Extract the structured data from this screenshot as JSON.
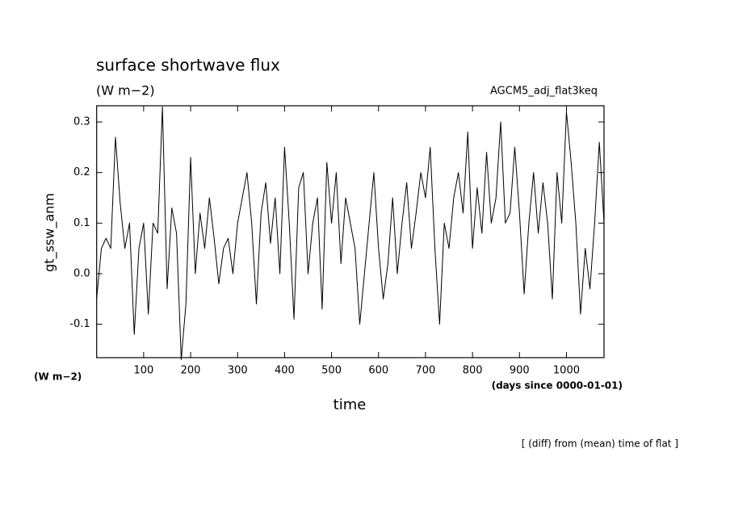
{
  "chart_data": {
    "type": "line",
    "title": "surface shortwave flux",
    "subtitle": "(W m−2)",
    "annotation": "AGCM5_adj_flat3keq",
    "ylabel": "gt_ssw_anm",
    "y_units": "(W m−2)",
    "x_units": "(days since 0000-01-01)",
    "xlabel": "time",
    "footnote": "[ (diff) from (mean) time of flat ]",
    "xlim": [
      0,
      1080
    ],
    "xticks": [
      100,
      200,
      300,
      400,
      500,
      600,
      700,
      800,
      900,
      1000
    ],
    "ylim": [
      -0.166,
      0.332
    ],
    "yticks": [
      {
        "value": -0.1,
        "label": "-0.1"
      },
      {
        "value": 0,
        "label": "0.0"
      },
      0.1,
      0.2,
      0.3
    ],
    "grid": false,
    "series": [
      {
        "name": "gt_ssw_anm",
        "color": "#000000",
        "x": [
          0,
          10,
          20,
          30,
          40,
          50,
          60,
          70,
          80,
          90,
          100,
          110,
          120,
          130,
          140,
          150,
          160,
          170,
          180,
          190,
          200,
          210,
          220,
          230,
          240,
          250,
          260,
          270,
          280,
          290,
          300,
          310,
          320,
          330,
          340,
          350,
          360,
          370,
          380,
          390,
          400,
          410,
          420,
          430,
          440,
          450,
          460,
          470,
          480,
          490,
          500,
          510,
          520,
          530,
          540,
          550,
          560,
          570,
          580,
          590,
          600,
          610,
          620,
          630,
          640,
          650,
          660,
          670,
          680,
          690,
          700,
          710,
          720,
          730,
          740,
          750,
          760,
          770,
          780,
          790,
          800,
          810,
          820,
          830,
          840,
          850,
          860,
          870,
          880,
          890,
          900,
          910,
          920,
          930,
          940,
          950,
          960,
          970,
          980,
          990,
          1000,
          1010,
          1020,
          1030,
          1040,
          1050,
          1060,
          1070,
          1080
        ],
        "values": [
          -0.05,
          0.05,
          0.07,
          0.05,
          0.27,
          0.14,
          0.05,
          0.1,
          -0.12,
          0.05,
          0.1,
          -0.08,
          0.1,
          0.08,
          0.33,
          -0.03,
          0.13,
          0.08,
          -0.17,
          -0.06,
          0.23,
          0.0,
          0.12,
          0.05,
          0.15,
          0.07,
          -0.02,
          0.05,
          0.07,
          0.0,
          0.1,
          0.15,
          0.2,
          0.1,
          -0.06,
          0.12,
          0.18,
          0.06,
          0.15,
          0.0,
          0.25,
          0.1,
          -0.09,
          0.17,
          0.2,
          0.0,
          0.1,
          0.15,
          -0.07,
          0.22,
          0.1,
          0.2,
          0.02,
          0.15,
          0.1,
          0.05,
          -0.1,
          0.0,
          0.1,
          0.2,
          0.05,
          -0.05,
          0.02,
          0.15,
          0.0,
          0.1,
          0.18,
          0.05,
          0.12,
          0.2,
          0.15,
          0.25,
          0.05,
          -0.1,
          0.1,
          0.05,
          0.15,
          0.2,
          0.12,
          0.28,
          0.05,
          0.17,
          0.08,
          0.24,
          0.1,
          0.15,
          0.3,
          0.1,
          0.12,
          0.25,
          0.12,
          -0.04,
          0.1,
          0.2,
          0.08,
          0.18,
          0.1,
          -0.05,
          0.2,
          0.1,
          0.32,
          0.22,
          0.1,
          -0.08,
          0.05,
          -0.03,
          0.1,
          0.26,
          0.1
        ]
      }
    ]
  }
}
